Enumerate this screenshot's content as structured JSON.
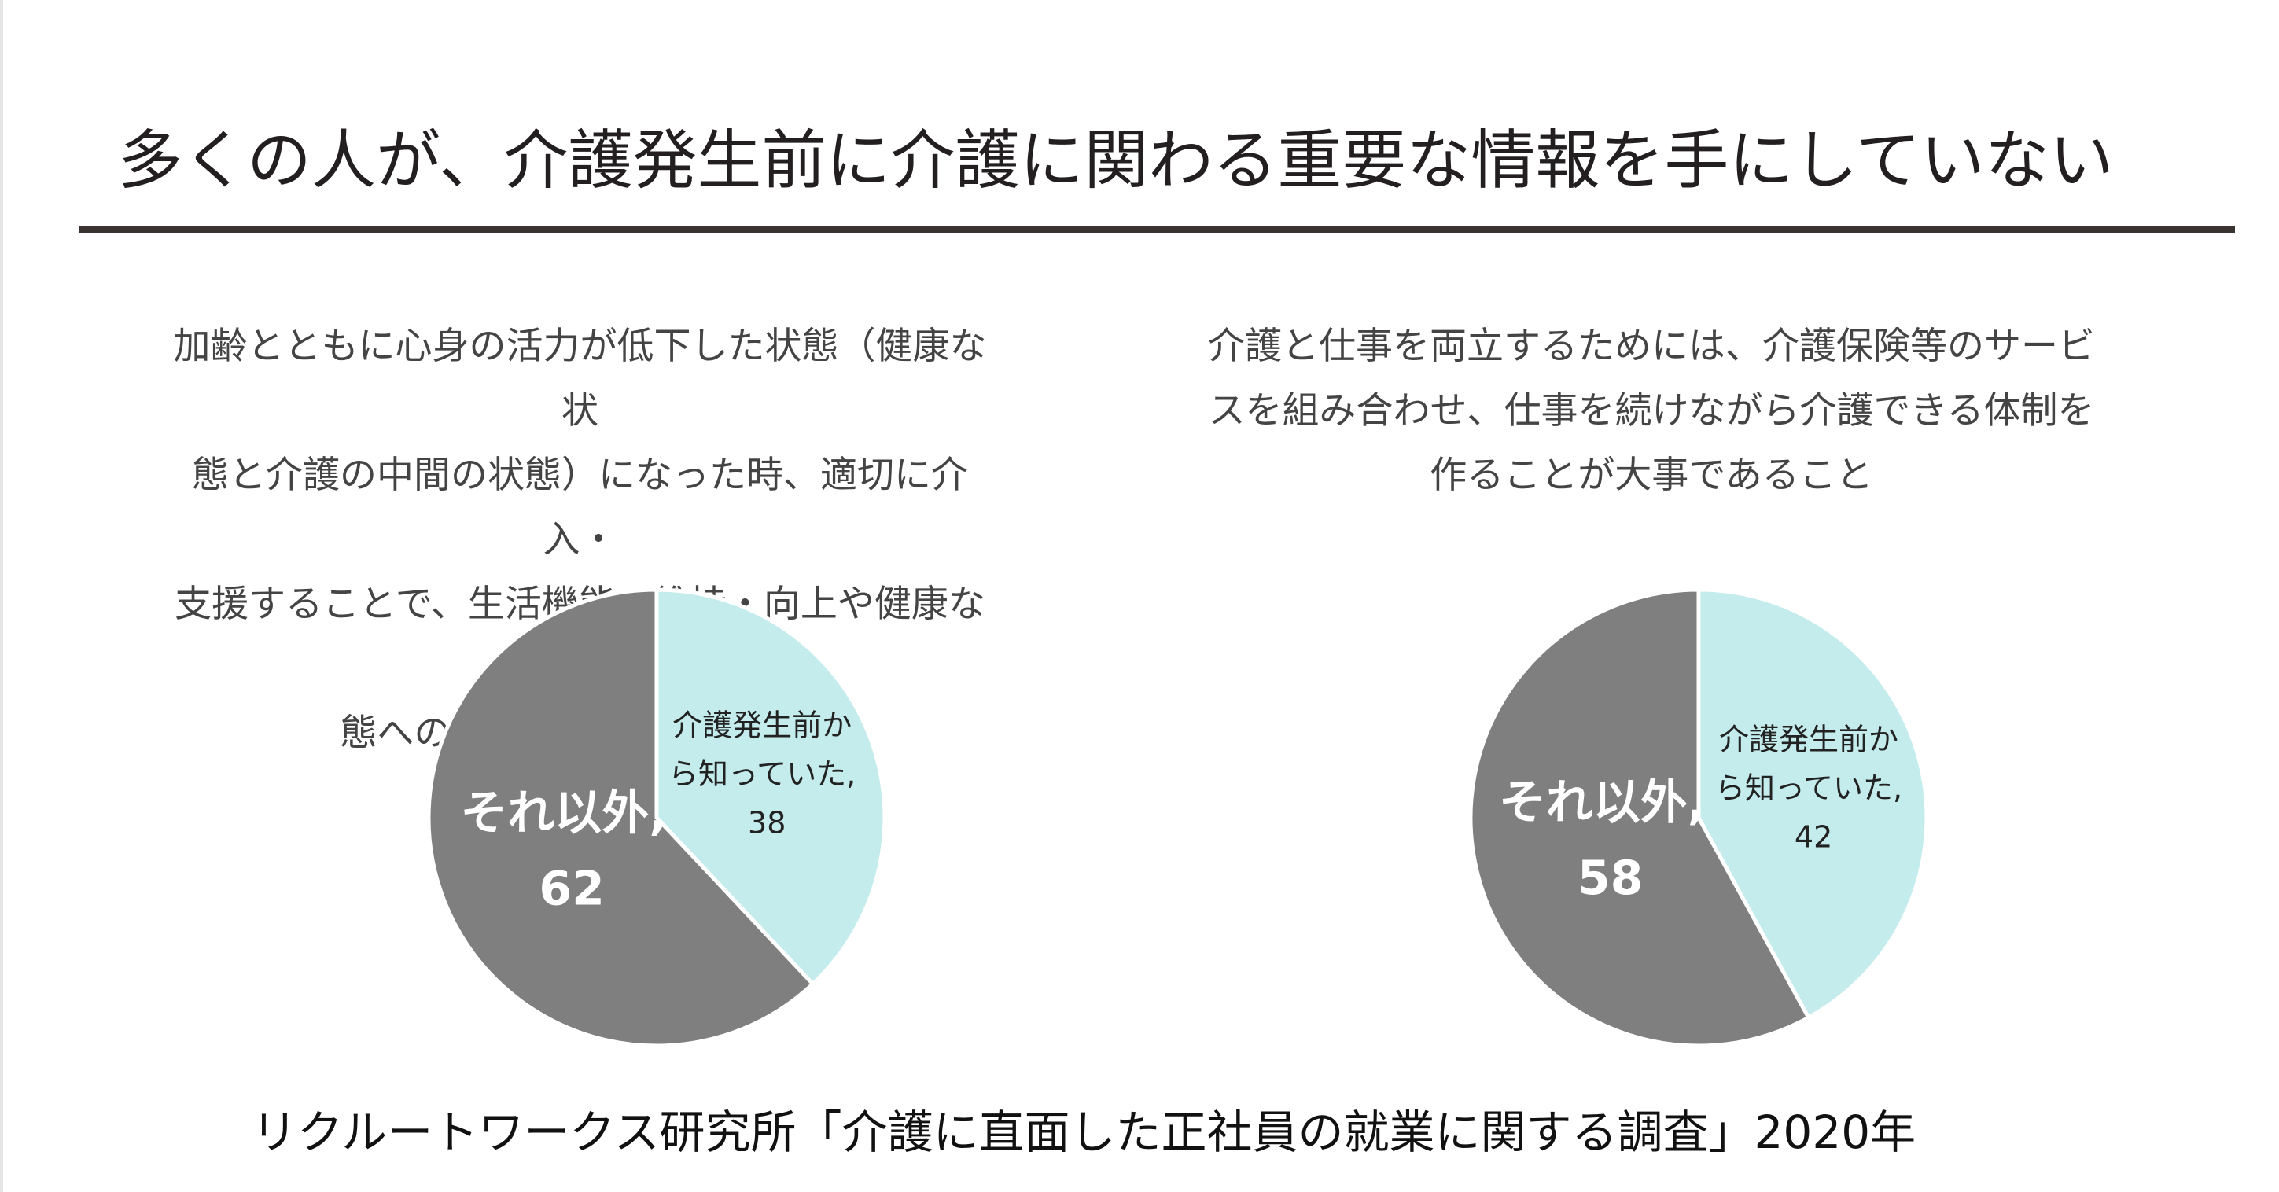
{
  "page": {
    "title": "多くの人が、介護発生前に介護に関わる重要な情報を手にしていない",
    "source": "リクルートワークス研究所「介護に直面した正社員の就業に関する調査」2020年"
  },
  "colors": {
    "known": "#c4ecec",
    "other": "#7f7f7f",
    "known_text": "#222222",
    "other_text": "#ffffff"
  },
  "chart_data": [
    {
      "type": "pie",
      "title": "加齢とともに心身の活力が低下した状態（健康な状態と介護の中間の状態）になった時、適切に介入・支援することで、生活機能の維持・向上や健康な状態への復帰が期待できること",
      "title_lines": [
        "加齢とともに心身の活力が低下した状態（健康な状",
        "態と介護の中間の状態）になった時、適切に介入・",
        "支援することで、生活機能の維持・向上や健康な状",
        "態への復帰が期待できること"
      ],
      "slices": [
        {
          "label": "介護発生前から知っていた",
          "label_lines": [
            "介護発生前か",
            "ら知っていた,"
          ],
          "value": 38
        },
        {
          "label": "それ以外",
          "label_lines": [
            "それ以外,"
          ],
          "value": 62
        }
      ]
    },
    {
      "type": "pie",
      "title": "介護と仕事を両立するためには、介護保険等のサービスを組み合わせ、仕事を続けながら介護できる体制を作ることが大事であること",
      "title_lines": [
        "介護と仕事を両立するためには、介護保険等のサービ",
        "スを組み合わせ、仕事を続けながら介護できる体制を",
        "作ることが大事であること"
      ],
      "slices": [
        {
          "label": "介護発生前から知っていた",
          "label_lines": [
            "介護発生前か",
            "ら知っていた,"
          ],
          "value": 42
        },
        {
          "label": "それ以外",
          "label_lines": [
            "それ以外,"
          ],
          "value": 58
        }
      ]
    }
  ]
}
